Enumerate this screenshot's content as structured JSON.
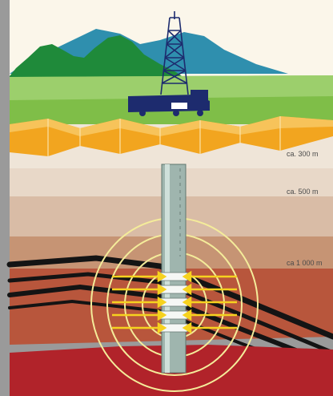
{
  "depth_labels": [
    "ca. 300 m",
    "ca. 500 m",
    "ca 1 000 m"
  ],
  "colors": {
    "frame": "#9a9a9a",
    "sky": "#fbf6ea",
    "mountain_teal": "#2f8fae",
    "mountain_green": "#1f8a3a",
    "grass": "#7fbe48",
    "aquifer_orange": "#f2a51f",
    "clay_light": "#e8d8c8",
    "clay_mid": "#d9bca6",
    "clay_dark": "#c69474",
    "sediment_red": "#b8563c",
    "reservoir_red": "#b1232a",
    "seam_black": "#141414",
    "casing": "#9fb5ae",
    "flow_lines": "#f4ec9a",
    "arrows": "#f6d21f",
    "rig": "#1d2b6e"
  },
  "icons": [
    "drilling-rig-icon",
    "truck-icon"
  ]
}
